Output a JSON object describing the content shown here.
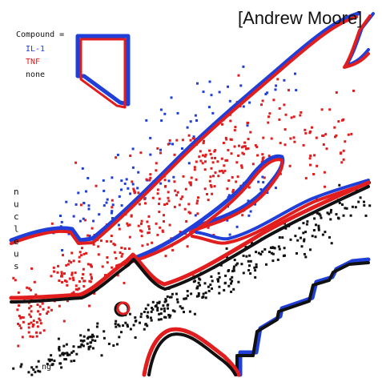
{
  "credit": "[Andrew Moore]",
  "legend": {
    "title": "Compound =",
    "entries": [
      {
        "label": "IL-1",
        "color": "#1f3fd8"
      },
      {
        "label": "TNF",
        "color": "#e11d1d"
      },
      {
        "label": "none",
        "color": "#111111"
      }
    ]
  },
  "y_label": "nucleus",
  "x_label_fragment": "ng",
  "colors": {
    "blue": "#1f3fd8",
    "red": "#e11d1d",
    "black": "#111111"
  },
  "chart_data": {
    "type": "scatter",
    "title": "",
    "xlabel": "",
    "ylabel": "nucleus",
    "grid": false,
    "legend_position": "top-left",
    "series": [
      {
        "name": "IL-1",
        "color": "#1f3fd8",
        "x": [],
        "y": []
      },
      {
        "name": "TNF",
        "color": "#e11d1d",
        "x": [],
        "y": []
      },
      {
        "name": "none",
        "color": "#111111",
        "x": [],
        "y": []
      }
    ]
  }
}
